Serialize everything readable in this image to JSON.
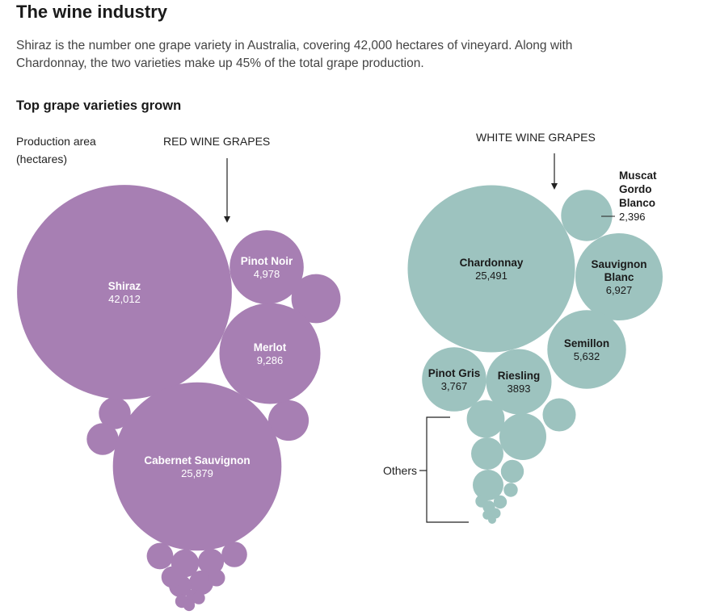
{
  "header": {
    "title": "The wine industry",
    "intro": "Shiraz is the number one grape variety in Australia, covering 42,000 hectares of vineyard. Along with Chardonnay, the two varieties make up 45% of the total grape production."
  },
  "chart_data": {
    "type": "bubble",
    "title": "Top grape varieties grown",
    "measure_label": [
      "Production area",
      "(hectares)"
    ],
    "colors": {
      "red": "#a77fb3",
      "white": "#9dc3bf",
      "label_dark": "#1a1a1a"
    },
    "groups": [
      {
        "name": "RED WINE GRAPES",
        "color": "#a77fb3",
        "labeled": [
          {
            "name": "Shiraz",
            "name_lines": [
              "Shiraz"
            ],
            "value": 42012,
            "value_label": "42,012"
          },
          {
            "name": "Cabernet Sauvignon",
            "name_lines": [
              "Cabernet Sauvignon"
            ],
            "value": 25879,
            "value_label": "25,879"
          },
          {
            "name": "Merlot",
            "name_lines": [
              "Merlot"
            ],
            "value": 9286,
            "value_label": "9,286"
          },
          {
            "name": "Pinot Noir",
            "name_lines": [
              "Pinot Noir"
            ],
            "value": 4978,
            "value_label": "4,978"
          }
        ],
        "others": [
          2200,
          1500,
          920,
          920,
          700,
          640,
          620,
          590,
          540,
          460,
          420,
          260,
          180,
          160,
          140,
          120
        ]
      },
      {
        "name": "WHITE WINE GRAPES",
        "color": "#9dc3bf",
        "labeled": [
          {
            "name": "Chardonnay",
            "name_lines": [
              "Chardonnay"
            ],
            "value": 25491,
            "value_label": "25,491"
          },
          {
            "name": "Sauvignon Blanc",
            "name_lines": [
              "Sauvignon",
              "Blanc"
            ],
            "value": 6927,
            "value_label": "6,927"
          },
          {
            "name": "Semillon",
            "name_lines": [
              "Semillon"
            ],
            "value": 5632,
            "value_label": "5,632"
          },
          {
            "name": "Riesling",
            "name_lines": [
              "Riesling"
            ],
            "value": 3893,
            "value_label": "3893"
          },
          {
            "name": "Pinot Gris",
            "name_lines": [
              "Pinot Gris"
            ],
            "value": 3767,
            "value_label": "3,767"
          },
          {
            "name": "Muscat Gordo Blanco",
            "name_lines": [
              "Muscat",
              "Gordo",
              "Blanco"
            ],
            "value": 2396,
            "value_label": "2,396"
          }
        ],
        "others_label": "Others",
        "others": [
          2000,
          1300,
          1000,
          950,
          860,
          480,
          180,
          160,
          140,
          140,
          100,
          80,
          60
        ]
      }
    ]
  }
}
